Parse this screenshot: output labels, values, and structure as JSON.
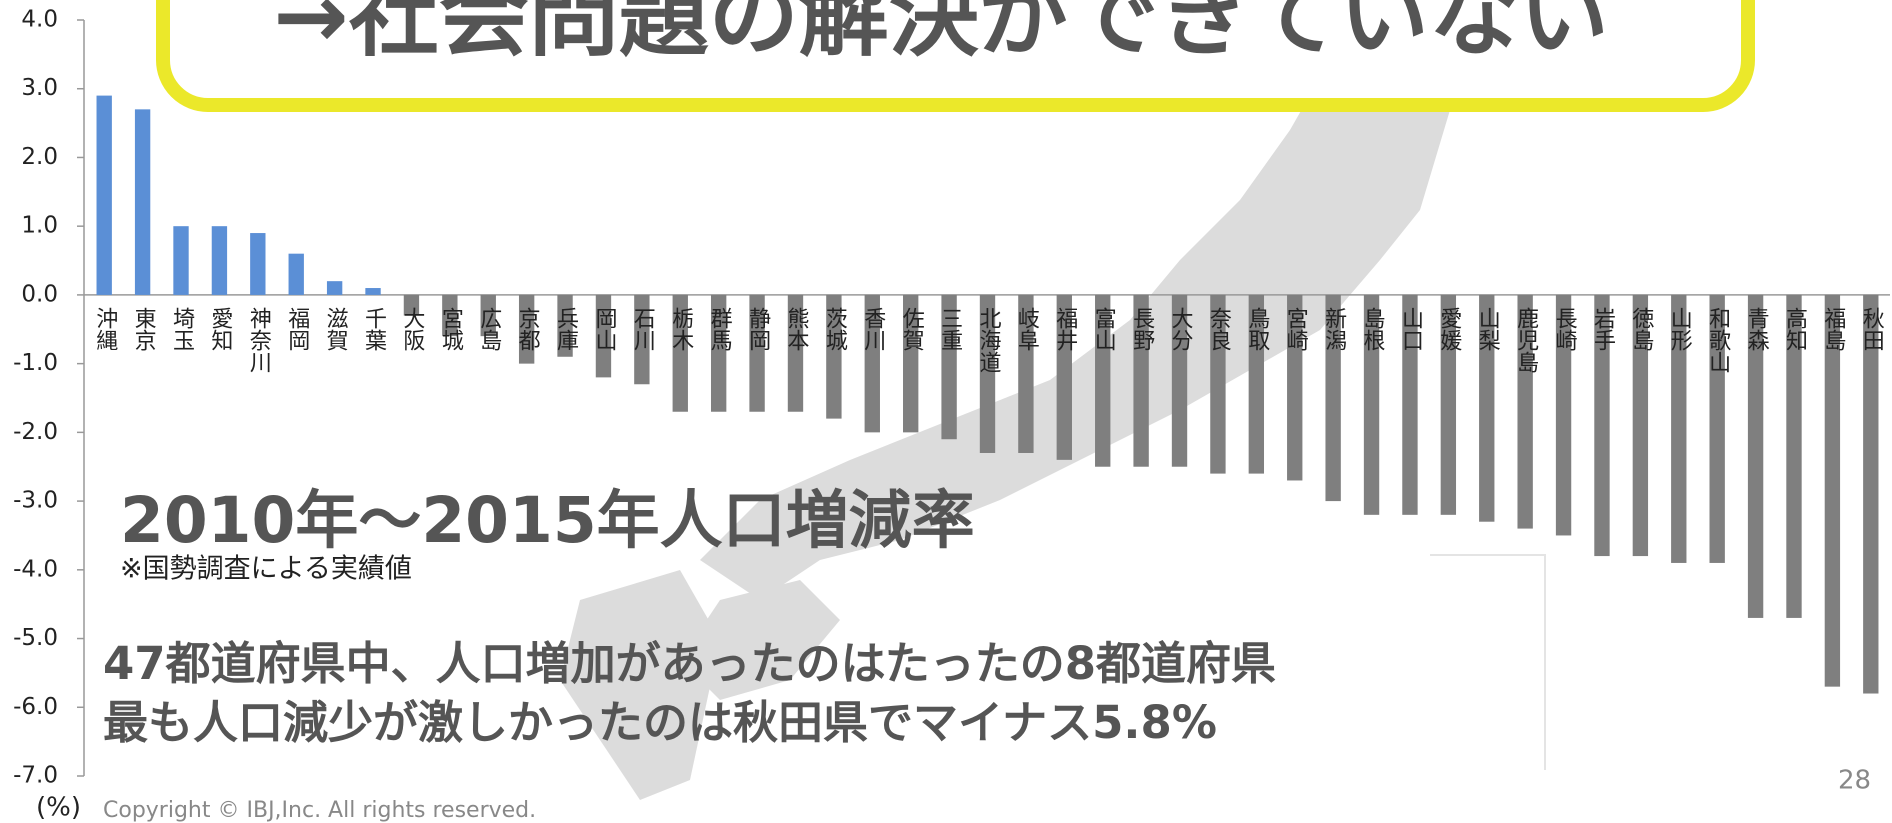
{
  "headline": "→社会問題の解決ができていない",
  "chart_data": {
    "type": "bar",
    "title": "2010年～2015年人口増減率",
    "subtitle": "※国勢調査による実績値",
    "annotations": [
      "47都道府県中、人口増加があったのはたったの8都道府県",
      "最も人口減少が激しかったのは秋田県でマイナス5.8%"
    ],
    "y_label": "(%)",
    "categories": [
      "沖縄",
      "東京",
      "埼玉",
      "愛知",
      "神奈川",
      "福岡",
      "滋賀",
      "千葉",
      "大阪",
      "宮城",
      "広島",
      "京都",
      "兵庫",
      "岡山",
      "石川",
      "栃木",
      "群馬",
      "静岡",
      "熊本",
      "茨城",
      "香川",
      "佐賀",
      "三重",
      "北海道",
      "岐阜",
      "福井",
      "富山",
      "長野",
      "大分",
      "奈良",
      "鳥取",
      "宮崎",
      "新潟",
      "島根",
      "山口",
      "愛媛",
      "山梨",
      "鹿児島",
      "長崎",
      "岩手",
      "徳島",
      "山形",
      "和歌山",
      "青森",
      "高知",
      "福島",
      "秋田"
    ],
    "values": [
      2.9,
      2.7,
      1.0,
      1.0,
      0.9,
      0.6,
      0.2,
      0.1,
      -0.3,
      -0.6,
      -0.6,
      -1.0,
      -0.9,
      -1.2,
      -1.3,
      -1.7,
      -1.7,
      -1.7,
      -1.7,
      -1.8,
      -2.0,
      -2.0,
      -2.1,
      -2.3,
      -2.3,
      -2.4,
      -2.5,
      -2.5,
      -2.5,
      -2.6,
      -2.6,
      -2.7,
      -3.0,
      -3.2,
      -3.2,
      -3.2,
      -3.3,
      -3.4,
      -3.5,
      -3.8,
      -3.8,
      -3.9,
      -3.9,
      -4.7,
      -4.7,
      -5.7,
      -5.8
    ],
    "positive_color": "#5b8fd6",
    "negative_color": "#7f7f7f",
    "ylim": [
      -7,
      4
    ],
    "yticks": [
      {
        "value": 4,
        "label": "4.0"
      },
      {
        "value": 3,
        "label": "3.0"
      },
      {
        "value": 2,
        "label": "2.0"
      },
      {
        "value": 1,
        "label": "1.0"
      },
      {
        "value": 0,
        "label": "0.0"
      },
      {
        "value": -1,
        "label": "-1.0"
      },
      {
        "value": -2,
        "label": "-2.0"
      },
      {
        "value": -3,
        "label": "-3.0"
      },
      {
        "value": -4,
        "label": "-4.0"
      },
      {
        "value": -5,
        "label": "-5.0"
      },
      {
        "value": -6,
        "label": "-6.0"
      },
      {
        "value": -7,
        "label": "-7.0"
      }
    ],
    "grid": false
  },
  "footer": {
    "copyright": "Copyright © IBJ,Inc. All rights reserved.",
    "page": "28"
  }
}
